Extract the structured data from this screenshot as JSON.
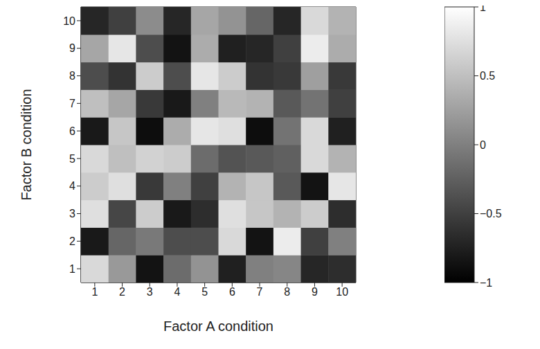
{
  "chart_data": {
    "type": "heatmap",
    "x_label": "Factor A condition",
    "y_label": "Factor B condition",
    "x": [
      1,
      2,
      3,
      4,
      5,
      6,
      7,
      8,
      9,
      10
    ],
    "y": [
      1,
      2,
      3,
      4,
      5,
      6,
      7,
      8,
      9,
      10
    ],
    "xlim": [
      0.5,
      10.5
    ],
    "ylim": [
      0.5,
      10.5
    ],
    "xticks": [
      1,
      2,
      3,
      4,
      5,
      6,
      7,
      8,
      9,
      10
    ],
    "yticks": [
      1,
      2,
      3,
      4,
      5,
      6,
      7,
      8,
      9,
      10
    ],
    "values": [
      [
        0.7,
        0.2,
        -0.85,
        -0.15,
        0.15,
        -0.75,
        0.0,
        0.05,
        -0.7,
        -0.65
      ],
      [
        -0.8,
        -0.2,
        -0.05,
        -0.4,
        -0.4,
        0.7,
        -0.85,
        0.85,
        -0.5,
        0.0
      ],
      [
        0.75,
        -0.45,
        0.6,
        -0.8,
        -0.65,
        0.75,
        0.55,
        0.4,
        0.6,
        -0.65
      ],
      [
        0.6,
        0.75,
        -0.55,
        0.0,
        -0.5,
        0.4,
        0.55,
        -0.3,
        -0.85,
        0.8
      ],
      [
        0.7,
        0.5,
        0.65,
        0.6,
        -0.15,
        -0.35,
        -0.3,
        -0.25,
        0.7,
        0.4
      ],
      [
        -0.8,
        0.55,
        -0.9,
        0.35,
        0.8,
        0.75,
        -0.9,
        -0.1,
        0.7,
        -0.75
      ],
      [
        0.5,
        0.3,
        -0.55,
        -0.8,
        0.0,
        0.45,
        0.4,
        -0.3,
        -0.1,
        -0.5
      ],
      [
        -0.4,
        -0.6,
        0.6,
        -0.4,
        0.8,
        0.6,
        -0.6,
        -0.55,
        0.25,
        -0.55
      ],
      [
        0.3,
        0.8,
        -0.4,
        -0.85,
        0.35,
        -0.75,
        -0.7,
        -0.5,
        0.85,
        0.35
      ],
      [
        -0.7,
        -0.5,
        0.1,
        -0.7,
        0.3,
        0.15,
        -0.2,
        -0.7,
        0.7,
        0.4
      ]
    ],
    "colorbar": {
      "range": [
        -1,
        1
      ],
      "ticks": [
        {
          "value": -1,
          "label": "−1"
        },
        {
          "value": -0.5,
          "label": "−0.5"
        },
        0,
        0.5,
        1
      ]
    }
  }
}
